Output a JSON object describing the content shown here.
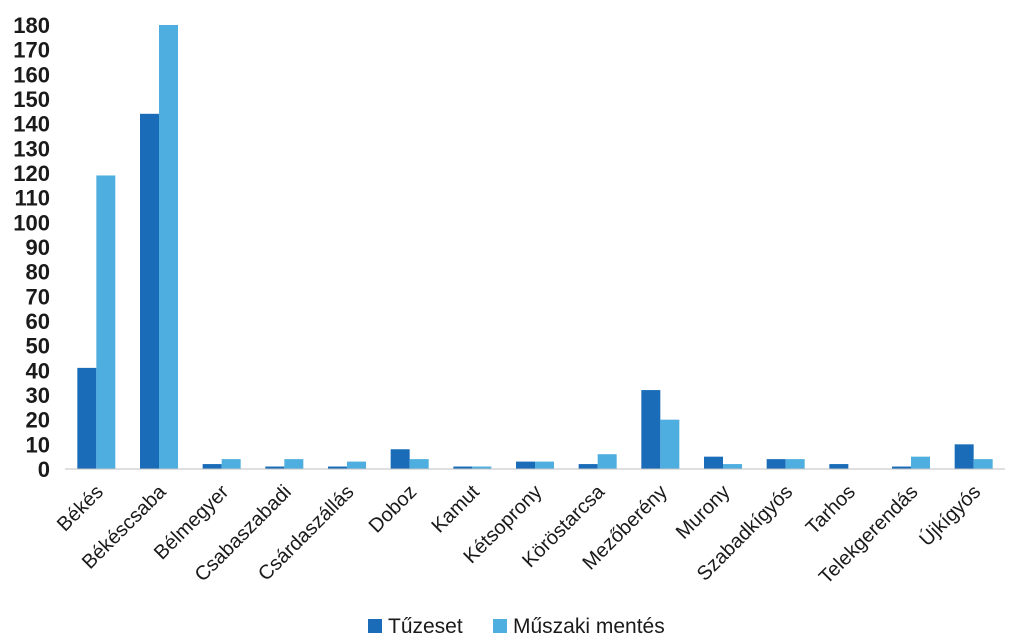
{
  "chart_data": {
    "type": "bar",
    "categories": [
      "Békés",
      "Békéscsaba",
      "Bélmegyer",
      "Csabaszabadi",
      "Csárdaszállás",
      "Doboz",
      "Kamut",
      "Kétsoprony",
      "Köröstarcsa",
      "Mezőberény",
      "Murony",
      "Szabadkígyós",
      "Tarhos",
      "Telekgerendás",
      "Újkígyós"
    ],
    "series": [
      {
        "name": "Tűzeset",
        "color": "#1a6cb8",
        "values": [
          41,
          144,
          2,
          1,
          1,
          8,
          1,
          3,
          2,
          32,
          5,
          4,
          2,
          1,
          10
        ]
      },
      {
        "name": "Műszaki mentés",
        "color": "#4faee0",
        "values": [
          119,
          180,
          4,
          4,
          3,
          4,
          1,
          3,
          6,
          20,
          2,
          4,
          0,
          5,
          4
        ]
      }
    ],
    "ylim": [
      0,
      180
    ],
    "yticks": [
      0,
      10,
      20,
      30,
      40,
      50,
      60,
      70,
      80,
      90,
      100,
      110,
      120,
      130,
      140,
      150,
      160,
      170,
      180
    ],
    "grid": false,
    "legend_position": "bottom"
  }
}
